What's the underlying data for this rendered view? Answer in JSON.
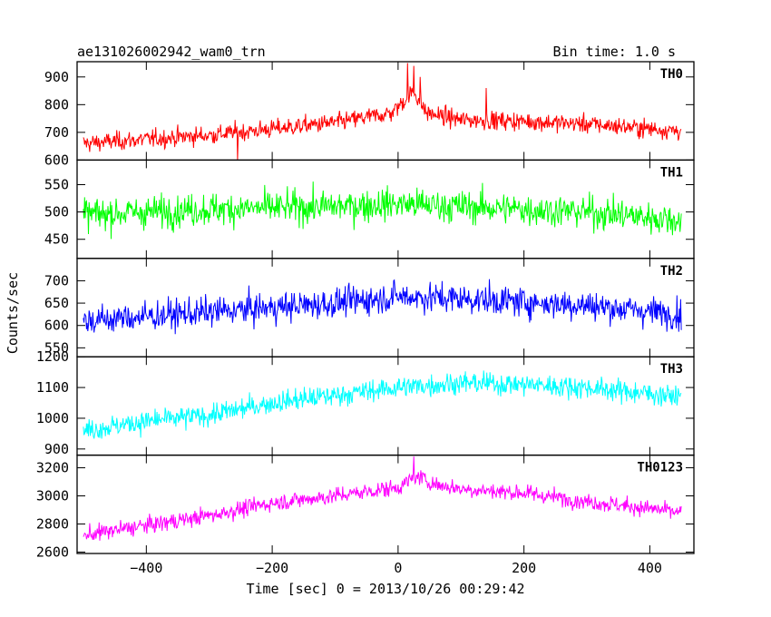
{
  "chart_data": {
    "type": "line",
    "title": "ae131026002942_wam0_trn",
    "bin_time_label": "Bin time: 1.0 s",
    "xlabel": "Time [sec] 0 = 2013/10/26 00:29:42",
    "ylabel": "Counts/sec",
    "xlim": [
      -510,
      470
    ],
    "x_ticks": [
      -400,
      -200,
      0,
      200,
      400
    ],
    "x_tick_labels": [
      "−400",
      "−200",
      "0",
      "200",
      "400"
    ],
    "x_range_data": [
      -500,
      450
    ],
    "panels": [
      {
        "name": "TH0",
        "color": "#ff0000",
        "ylim": [
          600,
          955
        ],
        "y_ticks": [
          600,
          700,
          800,
          900
        ],
        "y_tick_labels": [
          "600",
          "700",
          "800",
          "900"
        ],
        "profile": [
          [
            -500,
            660
          ],
          [
            -300,
            690
          ],
          [
            -100,
            735
          ],
          [
            -10,
            770
          ],
          [
            25,
            850
          ],
          [
            45,
            770
          ],
          [
            100,
            745
          ],
          [
            200,
            740
          ],
          [
            300,
            730
          ],
          [
            450,
            705
          ]
        ],
        "noise": 28,
        "spikes": [
          [
            15,
            950
          ],
          [
            25,
            940
          ],
          [
            35,
            900
          ],
          [
            140,
            860
          ],
          [
            -255,
            600
          ]
        ]
      },
      {
        "name": "TH1",
        "color": "#00ff00",
        "ylim": [
          415,
          595
        ],
        "y_ticks": [
          450,
          500,
          550
        ],
        "y_tick_labels": [
          "450",
          "500",
          "550"
        ],
        "profile": [
          [
            -500,
            495
          ],
          [
            -300,
            505
          ],
          [
            -100,
            510
          ],
          [
            0,
            515
          ],
          [
            100,
            510
          ],
          [
            300,
            500
          ],
          [
            450,
            485
          ]
        ],
        "noise": 25,
        "spikes": []
      },
      {
        "name": "TH2",
        "color": "#0000ff",
        "ylim": [
          530,
          750
        ],
        "y_ticks": [
          550,
          600,
          650,
          700
        ],
        "y_tick_labels": [
          "550",
          "600",
          "650",
          "700"
        ],
        "profile": [
          [
            -500,
            610
          ],
          [
            -300,
            630
          ],
          [
            -100,
            650
          ],
          [
            0,
            665
          ],
          [
            100,
            660
          ],
          [
            300,
            645
          ],
          [
            450,
            625
          ]
        ],
        "noise": 28,
        "spikes": []
      },
      {
        "name": "TH3",
        "color": "#00ffff",
        "ylim": [
          880,
          1200
        ],
        "y_ticks": [
          900,
          1000,
          1100,
          1200
        ],
        "y_tick_labels": [
          "900",
          "1000",
          "1100",
          "1200"
        ],
        "profile": [
          [
            -500,
            960
          ],
          [
            -400,
            990
          ],
          [
            -300,
            1010
          ],
          [
            -200,
            1050
          ],
          [
            -100,
            1075
          ],
          [
            0,
            1100
          ],
          [
            100,
            1115
          ],
          [
            200,
            1110
          ],
          [
            300,
            1100
          ],
          [
            450,
            1070
          ]
        ],
        "noise": 30,
        "spikes": []
      },
      {
        "name": "TH0123",
        "color": "#ff00ff",
        "ylim": [
          2590,
          3290
        ],
        "y_ticks": [
          2600,
          2800,
          3000,
          3200
        ],
        "y_tick_labels": [
          "2600",
          "2800",
          "3000",
          "3200"
        ],
        "profile": [
          [
            -500,
            2720
          ],
          [
            -300,
            2860
          ],
          [
            -200,
            2950
          ],
          [
            -100,
            3000
          ],
          [
            0,
            3060
          ],
          [
            30,
            3140
          ],
          [
            60,
            3080
          ],
          [
            100,
            3050
          ],
          [
            200,
            3020
          ],
          [
            300,
            2960
          ],
          [
            400,
            2910
          ],
          [
            450,
            2880
          ]
        ],
        "noise": 50,
        "spikes": [
          [
            25,
            3280
          ]
        ]
      }
    ]
  }
}
